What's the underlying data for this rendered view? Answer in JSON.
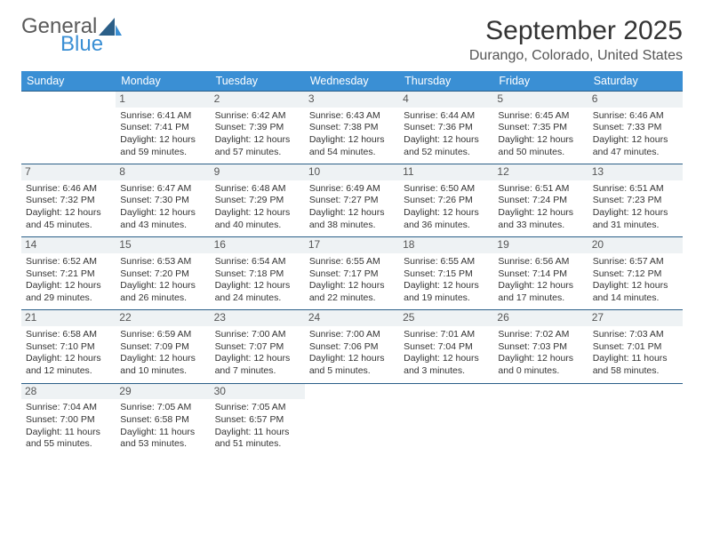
{
  "logo": {
    "text_top": "General",
    "text_bottom": "Blue"
  },
  "title": "September 2025",
  "location": "Durango, Colorado, United States",
  "colors": {
    "header_bg": "#3a8fd4",
    "header_text": "#ffffff",
    "row_border": "#2b5f88",
    "daynum_bg": "#eef2f4",
    "daynum_text": "#555555",
    "body_text": "#333333",
    "page_bg": "#ffffff",
    "logo_gray": "#5a5a5a",
    "logo_blue": "#3a8fd4"
  },
  "typography": {
    "title_fontsize": 30,
    "location_fontsize": 16,
    "header_fontsize": 12.5,
    "cell_fontsize": 10.5,
    "daynum_fontsize": 12,
    "logo_fontsize": 24
  },
  "calendar": {
    "type": "table",
    "columns": [
      "Sunday",
      "Monday",
      "Tuesday",
      "Wednesday",
      "Thursday",
      "Friday",
      "Saturday"
    ],
    "weeks": [
      [
        null,
        {
          "n": "1",
          "sr": "6:41 AM",
          "ss": "7:41 PM",
          "dl": "12 hours and 59 minutes."
        },
        {
          "n": "2",
          "sr": "6:42 AM",
          "ss": "7:39 PM",
          "dl": "12 hours and 57 minutes."
        },
        {
          "n": "3",
          "sr": "6:43 AM",
          "ss": "7:38 PM",
          "dl": "12 hours and 54 minutes."
        },
        {
          "n": "4",
          "sr": "6:44 AM",
          "ss": "7:36 PM",
          "dl": "12 hours and 52 minutes."
        },
        {
          "n": "5",
          "sr": "6:45 AM",
          "ss": "7:35 PM",
          "dl": "12 hours and 50 minutes."
        },
        {
          "n": "6",
          "sr": "6:46 AM",
          "ss": "7:33 PM",
          "dl": "12 hours and 47 minutes."
        }
      ],
      [
        {
          "n": "7",
          "sr": "6:46 AM",
          "ss": "7:32 PM",
          "dl": "12 hours and 45 minutes."
        },
        {
          "n": "8",
          "sr": "6:47 AM",
          "ss": "7:30 PM",
          "dl": "12 hours and 43 minutes."
        },
        {
          "n": "9",
          "sr": "6:48 AM",
          "ss": "7:29 PM",
          "dl": "12 hours and 40 minutes."
        },
        {
          "n": "10",
          "sr": "6:49 AM",
          "ss": "7:27 PM",
          "dl": "12 hours and 38 minutes."
        },
        {
          "n": "11",
          "sr": "6:50 AM",
          "ss": "7:26 PM",
          "dl": "12 hours and 36 minutes."
        },
        {
          "n": "12",
          "sr": "6:51 AM",
          "ss": "7:24 PM",
          "dl": "12 hours and 33 minutes."
        },
        {
          "n": "13",
          "sr": "6:51 AM",
          "ss": "7:23 PM",
          "dl": "12 hours and 31 minutes."
        }
      ],
      [
        {
          "n": "14",
          "sr": "6:52 AM",
          "ss": "7:21 PM",
          "dl": "12 hours and 29 minutes."
        },
        {
          "n": "15",
          "sr": "6:53 AM",
          "ss": "7:20 PM",
          "dl": "12 hours and 26 minutes."
        },
        {
          "n": "16",
          "sr": "6:54 AM",
          "ss": "7:18 PM",
          "dl": "12 hours and 24 minutes."
        },
        {
          "n": "17",
          "sr": "6:55 AM",
          "ss": "7:17 PM",
          "dl": "12 hours and 22 minutes."
        },
        {
          "n": "18",
          "sr": "6:55 AM",
          "ss": "7:15 PM",
          "dl": "12 hours and 19 minutes."
        },
        {
          "n": "19",
          "sr": "6:56 AM",
          "ss": "7:14 PM",
          "dl": "12 hours and 17 minutes."
        },
        {
          "n": "20",
          "sr": "6:57 AM",
          "ss": "7:12 PM",
          "dl": "12 hours and 14 minutes."
        }
      ],
      [
        {
          "n": "21",
          "sr": "6:58 AM",
          "ss": "7:10 PM",
          "dl": "12 hours and 12 minutes."
        },
        {
          "n": "22",
          "sr": "6:59 AM",
          "ss": "7:09 PM",
          "dl": "12 hours and 10 minutes."
        },
        {
          "n": "23",
          "sr": "7:00 AM",
          "ss": "7:07 PM",
          "dl": "12 hours and 7 minutes."
        },
        {
          "n": "24",
          "sr": "7:00 AM",
          "ss": "7:06 PM",
          "dl": "12 hours and 5 minutes."
        },
        {
          "n": "25",
          "sr": "7:01 AM",
          "ss": "7:04 PM",
          "dl": "12 hours and 3 minutes."
        },
        {
          "n": "26",
          "sr": "7:02 AM",
          "ss": "7:03 PM",
          "dl": "12 hours and 0 minutes."
        },
        {
          "n": "27",
          "sr": "7:03 AM",
          "ss": "7:01 PM",
          "dl": "11 hours and 58 minutes."
        }
      ],
      [
        {
          "n": "28",
          "sr": "7:04 AM",
          "ss": "7:00 PM",
          "dl": "11 hours and 55 minutes."
        },
        {
          "n": "29",
          "sr": "7:05 AM",
          "ss": "6:58 PM",
          "dl": "11 hours and 53 minutes."
        },
        {
          "n": "30",
          "sr": "7:05 AM",
          "ss": "6:57 PM",
          "dl": "11 hours and 51 minutes."
        },
        null,
        null,
        null,
        null
      ]
    ],
    "labels": {
      "sunrise": "Sunrise:",
      "sunset": "Sunset:",
      "daylight": "Daylight:"
    }
  }
}
